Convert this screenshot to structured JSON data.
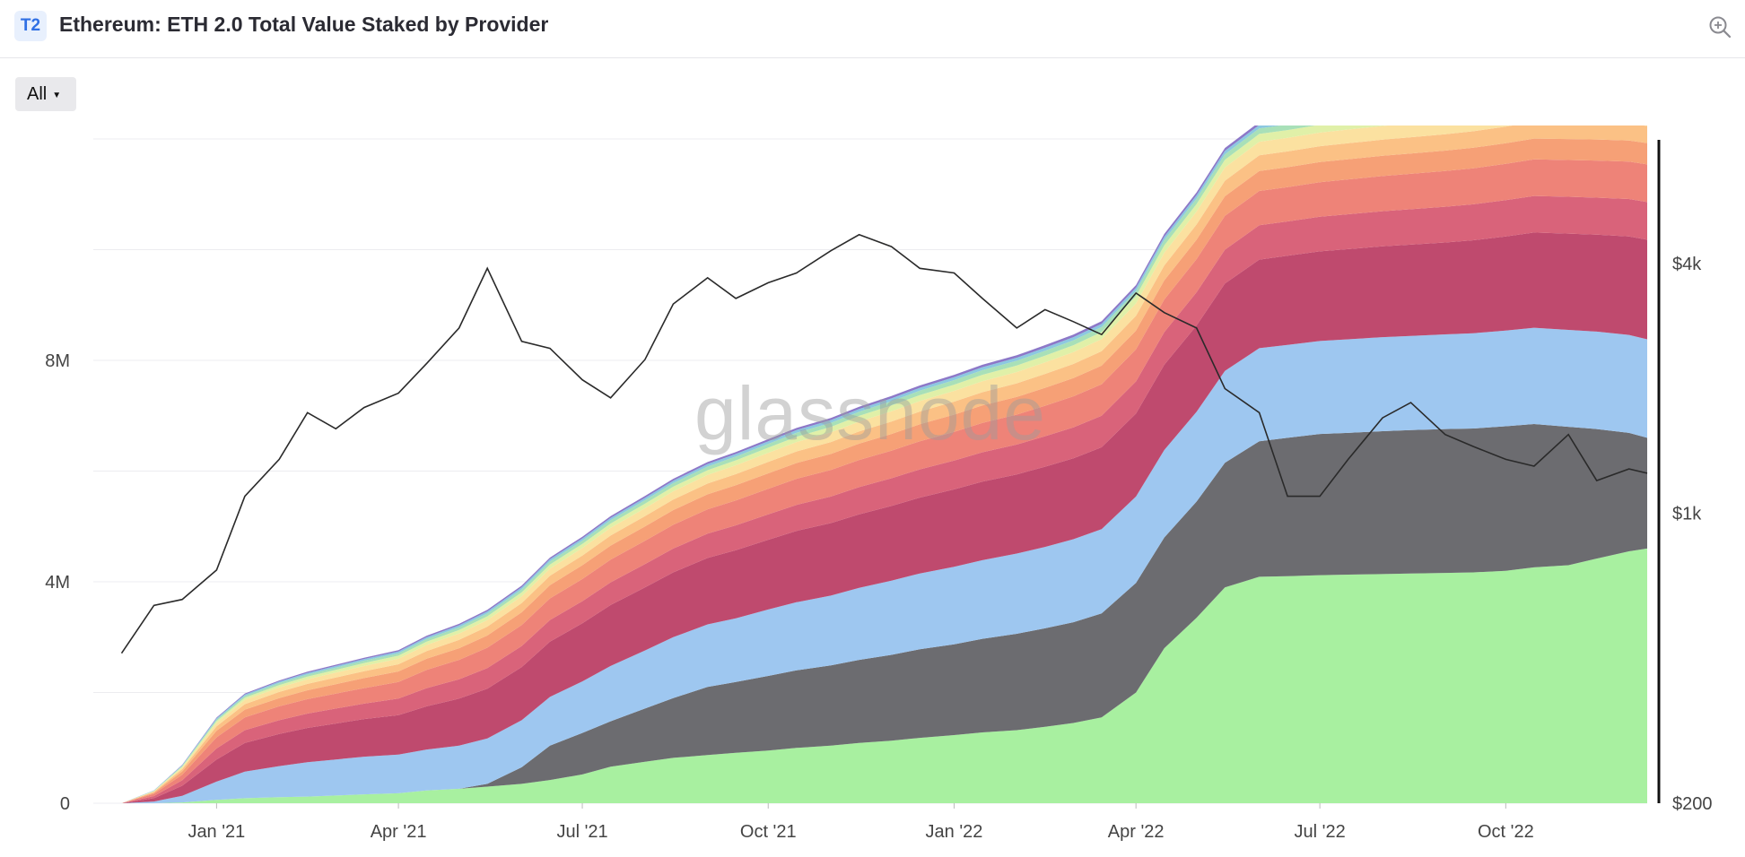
{
  "header": {
    "badge": "T2",
    "title": "Ethereum: ETH 2.0 Total Value Staked by Provider",
    "zoom_icon": "zoom-in-icon"
  },
  "controls": {
    "range_label": "All"
  },
  "watermark": "glassnode",
  "chart_data": {
    "type": "area",
    "stacked": true,
    "title": "Ethereum: ETH 2.0 Total Value Staked by Provider",
    "x": [
      "2020-11-15",
      "2020-12-01",
      "2020-12-15",
      "2021-01-01",
      "2021-01-15",
      "2021-02-01",
      "2021-02-15",
      "2021-03-01",
      "2021-03-15",
      "2021-04-01",
      "2021-04-15",
      "2021-05-01",
      "2021-05-15",
      "2021-06-01",
      "2021-06-15",
      "2021-07-01",
      "2021-07-15",
      "2021-08-01",
      "2021-08-15",
      "2021-09-01",
      "2021-09-15",
      "2021-10-01",
      "2021-10-15",
      "2021-11-01",
      "2021-11-15",
      "2021-12-01",
      "2021-12-15",
      "2022-01-01",
      "2022-01-15",
      "2022-02-01",
      "2022-02-15",
      "2022-03-01",
      "2022-03-15",
      "2022-04-01",
      "2022-04-15",
      "2022-05-01",
      "2022-05-15",
      "2022-06-01",
      "2022-06-15",
      "2022-07-01",
      "2022-07-15",
      "2022-08-01",
      "2022-08-15",
      "2022-09-01",
      "2022-09-15",
      "2022-10-01",
      "2022-10-15",
      "2022-11-01",
      "2022-11-15",
      "2022-12-01",
      "2022-12-10"
    ],
    "x_tick_labels": [
      "Jan '21",
      "Apr '21",
      "Jul '21",
      "Oct '21",
      "Jan '22",
      "Apr '22",
      "Jul '22",
      "Oct '22"
    ],
    "y_left": {
      "label": "",
      "ticks": [
        "0",
        "4M",
        "8M"
      ],
      "range": [
        0,
        12000000
      ]
    },
    "y_right": {
      "label": "",
      "scale": "log",
      "ticks": [
        "$200",
        "$1k",
        "$4k"
      ],
      "range": [
        200,
        8000
      ]
    },
    "colors": [
      "#a8f0a0",
      "#6c6c70",
      "#9ec7f0",
      "#bf4a6e",
      "#d9637a",
      "#ee8378",
      "#f6a076",
      "#fbc185",
      "#fbe1a0",
      "#e0f0a8",
      "#a8e0b8",
      "#8cc8e0",
      "#8c78c8"
    ],
    "series": [
      {
        "values": [
          0,
          0,
          15000,
          60000,
          90000,
          110000,
          120000,
          140000,
          160000,
          180000,
          230000,
          260000,
          300000,
          350000,
          420000,
          520000,
          660000,
          750000,
          820000,
          870000,
          910000,
          950000,
          1000000,
          1040000,
          1090000,
          1130000,
          1180000,
          1230000,
          1280000,
          1320000,
          1380000,
          1450000,
          1550000,
          2000000,
          2800000,
          3350000,
          3900000,
          4090000,
          4100000,
          4120000,
          4130000,
          4140000,
          4150000,
          4160000,
          4170000,
          4200000,
          4260000,
          4300000,
          4420000,
          4550000,
          4600000
        ]
      },
      {
        "values": [
          0,
          0,
          0,
          0,
          0,
          0,
          0,
          0,
          0,
          0,
          0,
          0,
          50000,
          300000,
          620000,
          750000,
          820000,
          960000,
          1080000,
          1230000,
          1280000,
          1350000,
          1400000,
          1450000,
          1500000,
          1550000,
          1600000,
          1640000,
          1690000,
          1740000,
          1780000,
          1820000,
          1880000,
          1980000,
          2000000,
          2100000,
          2250000,
          2450000,
          2500000,
          2550000,
          2560000,
          2580000,
          2590000,
          2600000,
          2600000,
          2610000,
          2590000,
          2500000,
          2340000,
          2140000,
          2000000
        ]
      },
      {
        "values": [
          0,
          30000,
          120000,
          330000,
          480000,
          560000,
          620000,
          650000,
          680000,
          700000,
          740000,
          780000,
          820000,
          850000,
          880000,
          930000,
          1000000,
          1050000,
          1100000,
          1130000,
          1150000,
          1200000,
          1230000,
          1260000,
          1300000,
          1340000,
          1370000,
          1400000,
          1420000,
          1450000,
          1470000,
          1500000,
          1520000,
          1560000,
          1580000,
          1620000,
          1660000,
          1680000,
          1680000,
          1680000,
          1690000,
          1700000,
          1700000,
          1710000,
          1720000,
          1730000,
          1740000,
          1750000,
          1760000,
          1770000,
          1780000
        ]
      },
      {
        "values": [
          0,
          60000,
          180000,
          400000,
          520000,
          580000,
          620000,
          650000,
          680000,
          710000,
          780000,
          850000,
          900000,
          960000,
          1000000,
          1050000,
          1100000,
          1140000,
          1170000,
          1200000,
          1230000,
          1260000,
          1290000,
          1310000,
          1330000,
          1350000,
          1370000,
          1400000,
          1420000,
          1430000,
          1450000,
          1460000,
          1480000,
          1500000,
          1540000,
          1560000,
          1580000,
          1600000,
          1610000,
          1620000,
          1630000,
          1640000,
          1650000,
          1660000,
          1680000,
          1700000,
          1720000,
          1740000,
          1750000,
          1780000,
          1800000
        ]
      },
      {
        "values": [
          0,
          40000,
          100000,
          200000,
          230000,
          250000,
          260000,
          270000,
          280000,
          300000,
          330000,
          350000,
          370000,
          380000,
          390000,
          400000,
          410000,
          420000,
          430000,
          440000,
          450000,
          460000,
          470000,
          480000,
          490000,
          500000,
          510000,
          520000,
          530000,
          540000,
          550000,
          560000,
          570000,
          580000,
          590000,
          600000,
          610000,
          620000,
          620000,
          625000,
          630000,
          635000,
          640000,
          645000,
          650000,
          655000,
          660000,
          665000,
          670000,
          675000,
          680000
        ]
      },
      {
        "values": [
          0,
          40000,
          100000,
          200000,
          230000,
          250000,
          260000,
          270000,
          280000,
          300000,
          330000,
          350000,
          370000,
          380000,
          390000,
          400000,
          410000,
          420000,
          430000,
          440000,
          450000,
          460000,
          470000,
          480000,
          490000,
          500000,
          510000,
          520000,
          530000,
          540000,
          550000,
          560000,
          570000,
          580000,
          590000,
          600000,
          610000,
          620000,
          620000,
          625000,
          630000,
          635000,
          640000,
          645000,
          650000,
          655000,
          660000,
          665000,
          670000,
          675000,
          680000
        ]
      },
      {
        "values": [
          0,
          20000,
          60000,
          120000,
          140000,
          150000,
          160000,
          170000,
          180000,
          190000,
          200000,
          210000,
          220000,
          230000,
          240000,
          250000,
          255000,
          260000,
          265000,
          270000,
          275000,
          280000,
          285000,
          290000,
          295000,
          300000,
          305000,
          310000,
          315000,
          320000,
          325000,
          330000,
          335000,
          340000,
          345000,
          350000,
          355000,
          360000,
          360000,
          362000,
          364000,
          366000,
          368000,
          370000,
          372000,
          374000,
          376000,
          378000,
          380000,
          382000,
          385000
        ]
      },
      {
        "values": [
          0,
          15000,
          40000,
          80000,
          100000,
          110000,
          115000,
          120000,
          125000,
          130000,
          140000,
          150000,
          160000,
          165000,
          170000,
          175000,
          180000,
          185000,
          190000,
          195000,
          200000,
          205000,
          210000,
          215000,
          220000,
          225000,
          230000,
          235000,
          240000,
          245000,
          250000,
          255000,
          260000,
          265000,
          270000,
          275000,
          280000,
          285000,
          285000,
          287000,
          289000,
          291000,
          293000,
          295000,
          297000,
          299000,
          301000,
          303000,
          305000,
          307000,
          310000
        ]
      },
      {
        "values": [
          0,
          10000,
          30000,
          60000,
          75000,
          80000,
          85000,
          90000,
          95000,
          100000,
          110000,
          115000,
          120000,
          125000,
          130000,
          135000,
          140000,
          145000,
          150000,
          155000,
          160000,
          165000,
          170000,
          175000,
          180000,
          185000,
          190000,
          195000,
          200000,
          205000,
          210000,
          215000,
          220000,
          225000,
          230000,
          235000,
          240000,
          245000,
          245000,
          246000,
          247000,
          248000,
          249000,
          250000,
          251000,
          252000,
          253000,
          254000,
          255000,
          256000,
          258000
        ]
      },
      {
        "values": [
          0,
          6000,
          18000,
          35000,
          42000,
          45000,
          48000,
          50000,
          53000,
          56000,
          60000,
          63000,
          66000,
          69000,
          72000,
          75000,
          78000,
          81000,
          84000,
          87000,
          90000,
          93000,
          96000,
          99000,
          102000,
          105000,
          108000,
          111000,
          114000,
          117000,
          120000,
          123000,
          126000,
          129000,
          132000,
          135000,
          138000,
          140000,
          140000,
          141000,
          142000,
          143000,
          144000,
          145000,
          146000,
          147000,
          148000,
          149000,
          150000,
          151000,
          152000
        ]
      },
      {
        "values": [
          0,
          5000,
          14000,
          28000,
          33000,
          36000,
          38000,
          40000,
          42000,
          44000,
          47000,
          50000,
          52000,
          54000,
          56000,
          58000,
          60000,
          62000,
          64000,
          66000,
          68000,
          70000,
          72000,
          74000,
          76000,
          78000,
          80000,
          82000,
          84000,
          86000,
          88000,
          90000,
          92000,
          94000,
          96000,
          98000,
          100000,
          101000,
          101000,
          102000,
          102000,
          103000,
          103000,
          104000,
          104000,
          105000,
          105000,
          106000,
          106000,
          107000,
          108000
        ]
      },
      {
        "values": [
          0,
          4000,
          10000,
          20000,
          24000,
          26000,
          28000,
          30000,
          31000,
          32000,
          34000,
          36000,
          37000,
          38000,
          40000,
          41000,
          42000,
          43000,
          44000,
          45000,
          46000,
          47000,
          48000,
          49000,
          50000,
          51000,
          52000,
          53000,
          54000,
          55000,
          56000,
          57000,
          58000,
          59000,
          60000,
          61000,
          62000,
          62000,
          62000,
          63000,
          63000,
          63000,
          64000,
          64000,
          64000,
          65000,
          65000,
          65000,
          66000,
          66000,
          67000
        ]
      },
      {
        "values": [
          0,
          3000,
          8000,
          15000,
          18000,
          20000,
          21000,
          22000,
          23000,
          24000,
          26000,
          27000,
          28000,
          29000,
          30000,
          31000,
          32000,
          33000,
          34000,
          35000,
          36000,
          37000,
          38000,
          39000,
          40000,
          41000,
          42000,
          43000,
          44000,
          45000,
          46000,
          47000,
          48000,
          49000,
          50000,
          51000,
          52000,
          52000,
          52000,
          53000,
          53000,
          53000,
          54000,
          54000,
          54000,
          55000,
          55000,
          55000,
          56000,
          56000,
          57000
        ]
      }
    ],
    "price_series": {
      "name": "",
      "axis": "right",
      "color": "#2a2a2a",
      "values": [
        460,
        600,
        620,
        730,
        1100,
        1350,
        1750,
        1600,
        1800,
        1950,
        2300,
        2800,
        3900,
        2600,
        2500,
        2100,
        1900,
        2350,
        3200,
        3700,
        3300,
        3600,
        3800,
        4300,
        4700,
        4400,
        3900,
        3800,
        3300,
        2800,
        3100,
        2900,
        2700,
        3400,
        3050,
        2800,
        2000,
        1750,
        1100,
        1100,
        1350,
        1700,
        1850,
        1550,
        1450,
        1350,
        1300,
        1550,
        1200,
        1280,
        1250
      ]
    }
  }
}
